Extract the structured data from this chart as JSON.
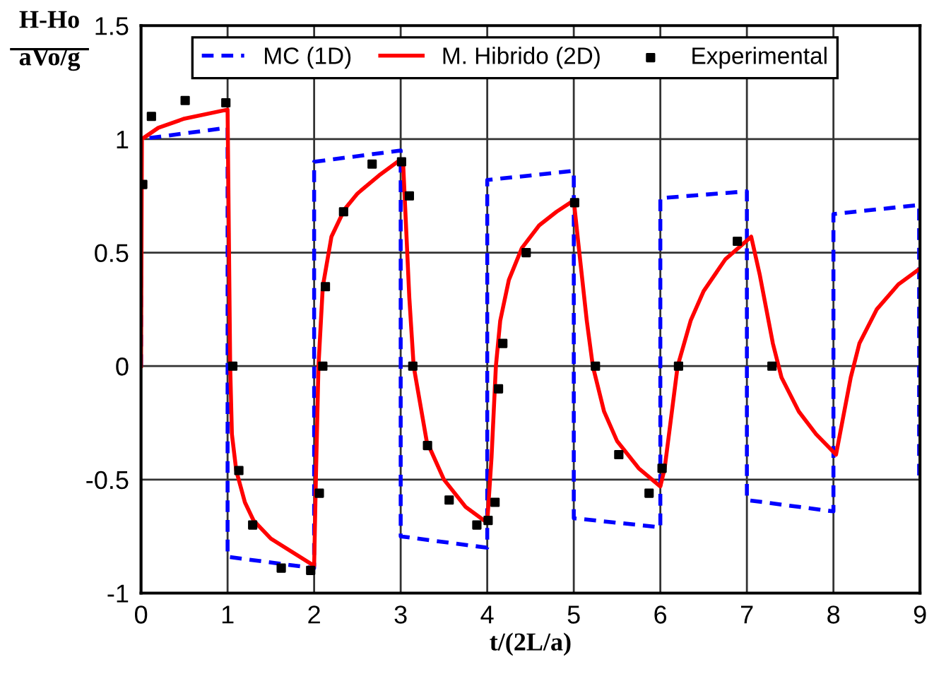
{
  "chart_data": {
    "type": "line",
    "xlabel": "t/(2L/a)",
    "ylabel": "H-Ho\naVo/g",
    "xlim": [
      0,
      9
    ],
    "xticks": [
      0,
      1,
      2,
      3,
      4,
      5,
      6,
      7,
      8,
      9
    ],
    "ylim": [
      -1,
      1.5
    ],
    "yticks": [
      {
        "value": -1,
        "label": "-1"
      },
      {
        "value": -0.5,
        "label": "-0.5"
      },
      0,
      0.5,
      1,
      1.5
    ],
    "grid": true,
    "legend": "top",
    "series": [
      {
        "name": "MC (1D)",
        "line_style": "dashed",
        "color": "#0000ff",
        "x": [
          0,
          0,
          1,
          1,
          2,
          2,
          3,
          3,
          4,
          4,
          5,
          5,
          6,
          6,
          7,
          7,
          8,
          8,
          8.99,
          8.99
        ],
        "values": [
          0,
          1.0,
          1.05,
          -0.84,
          -0.89,
          0.9,
          0.95,
          -0.75,
          -0.8,
          0.82,
          0.86,
          -0.67,
          -0.71,
          0.74,
          0.77,
          -0.59,
          -0.64,
          0.67,
          0.71,
          -0.5
        ]
      },
      {
        "name": "M. Hibrido (2D)",
        "line_style": "solid",
        "color": "#ff0000",
        "x": [
          0,
          0.01,
          0.2,
          0.5,
          1.0,
          1.03,
          1.05,
          1.1,
          1.2,
          1.3,
          1.5,
          1.75,
          2.0,
          2.02,
          2.05,
          2.1,
          2.2,
          2.35,
          2.5,
          2.75,
          3.0,
          3.03,
          3.1,
          3.15,
          3.3,
          3.5,
          3.75,
          4.0,
          4.05,
          4.1,
          4.15,
          4.25,
          4.4,
          4.6,
          4.8,
          5.0,
          5.05,
          5.15,
          5.22,
          5.35,
          5.5,
          5.75,
          6.0,
          6.05,
          6.15,
          6.2,
          6.35,
          6.5,
          6.75,
          7.05,
          7.15,
          7.3,
          7.4,
          7.6,
          7.8,
          8.03,
          8.1,
          8.2,
          8.3,
          8.5,
          8.75,
          9.0
        ],
        "values": [
          0,
          1.0,
          1.05,
          1.09,
          1.13,
          0,
          -0.3,
          -0.46,
          -0.6,
          -0.68,
          -0.76,
          -0.82,
          -0.88,
          -0.5,
          0,
          0.35,
          0.57,
          0.69,
          0.76,
          0.84,
          0.91,
          0.88,
          0.3,
          0,
          -0.33,
          -0.5,
          -0.62,
          -0.69,
          -0.4,
          0,
          0.2,
          0.38,
          0.52,
          0.62,
          0.68,
          0.73,
          0.55,
          0.2,
          0,
          -0.2,
          -0.33,
          -0.45,
          -0.53,
          -0.45,
          -0.15,
          0,
          0.2,
          0.33,
          0.47,
          0.57,
          0.4,
          0.1,
          -0.05,
          -0.2,
          -0.3,
          -0.39,
          -0.25,
          -0.05,
          0.1,
          0.25,
          0.36,
          0.43
        ]
      },
      {
        "name": "Experimental",
        "type": "scatter",
        "marker": "square",
        "color": "#000000",
        "x": [
          0.02,
          0.12,
          0.51,
          0.98,
          1.06,
          1.13,
          1.29,
          1.62,
          1.96,
          2.06,
          2.1,
          2.13,
          2.34,
          2.67,
          3.01,
          3.1,
          3.14,
          3.31,
          3.56,
          3.88,
          4.01,
          4.09,
          4.13,
          4.18,
          4.45,
          5.01,
          5.25,
          5.52,
          5.87,
          6.02,
          6.21,
          6.89,
          7.29
        ],
        "values": [
          0.8,
          1.1,
          1.17,
          1.16,
          0,
          -0.46,
          -0.7,
          -0.89,
          -0.9,
          -0.56,
          0,
          0.35,
          0.68,
          0.89,
          0.9,
          0.75,
          0,
          -0.35,
          -0.59,
          -0.7,
          -0.68,
          -0.6,
          -0.1,
          0.1,
          0.5,
          0.72,
          0,
          -0.39,
          -0.56,
          -0.45,
          0,
          0.55,
          0
        ]
      }
    ]
  }
}
